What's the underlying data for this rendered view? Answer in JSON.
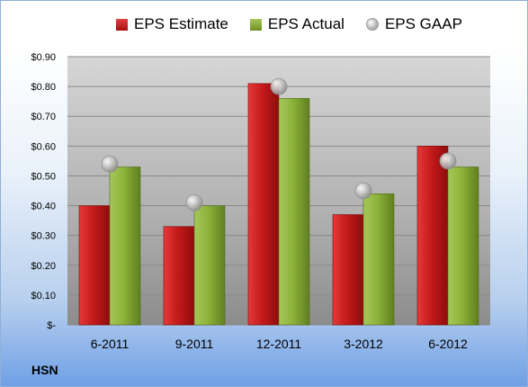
{
  "chart_data": {
    "type": "bar",
    "categories": [
      "6-2011",
      "9-2011",
      "12-2011",
      "3-2012",
      "6-2012"
    ],
    "series": [
      {
        "name": "EPS Estimate",
        "values": [
          0.4,
          0.33,
          0.81,
          0.37,
          0.6
        ],
        "color": "#c41a1a"
      },
      {
        "name": "EPS Actual",
        "values": [
          0.53,
          0.4,
          0.76,
          0.44,
          0.53
        ],
        "color": "#8db33a"
      }
    ],
    "markers": {
      "name": "EPS GAAP",
      "values": [
        0.54,
        0.41,
        0.8,
        0.45,
        0.55
      ],
      "color": "#b0b0b0"
    },
    "ylim": [
      0,
      0.9
    ],
    "yticks": [
      0,
      0.1,
      0.2,
      0.3,
      0.4,
      0.5,
      0.6,
      0.7,
      0.8,
      0.9
    ],
    "ytick_labels": [
      "$-",
      "$0.10",
      "$0.20",
      "$0.30",
      "$0.40",
      "$0.50",
      "$0.60",
      "$0.70",
      "$0.80",
      "$0.90"
    ],
    "grid": true,
    "legend_position": "top"
  },
  "ticker": "HSN"
}
